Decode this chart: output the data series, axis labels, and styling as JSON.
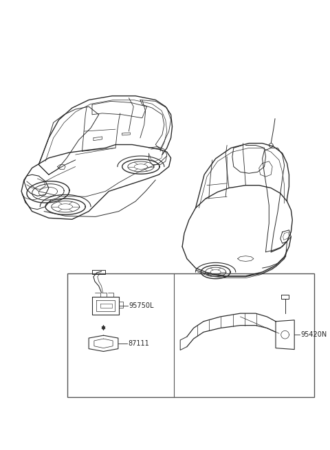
{
  "bg_color": "#ffffff",
  "fig_width": 4.8,
  "fig_height": 6.55,
  "dpi": 100,
  "line_color": "#2a2a2a",
  "box_line_color": "#555555",
  "labels": {
    "95750L": [
      0.418,
      0.243
    ],
    "87111": [
      0.418,
      0.172
    ],
    "95420N": [
      0.745,
      0.213
    ]
  }
}
